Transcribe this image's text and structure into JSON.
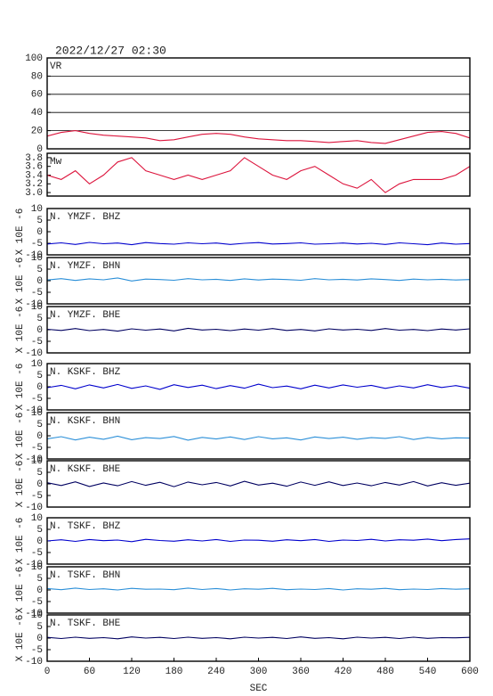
{
  "chart_data": [
    {
      "type": "line",
      "title": "2022/12/27 02:30",
      "label": "VR",
      "color": "#dc143c",
      "grid": true,
      "x": [
        0,
        20,
        40,
        60,
        80,
        100,
        120,
        140,
        160,
        180,
        200,
        220,
        240,
        260,
        280,
        300,
        320,
        340,
        360,
        380,
        400,
        420,
        440,
        460,
        480,
        500,
        520,
        540,
        560,
        580,
        600
      ],
      "values": [
        14,
        18,
        20,
        17,
        15,
        14,
        13,
        12,
        9,
        10,
        13,
        16,
        17,
        16,
        13,
        11,
        10,
        9,
        9,
        8,
        7,
        8,
        9,
        7,
        6,
        10,
        14,
        18,
        19,
        17,
        12
      ],
      "xlim": [
        0,
        600
      ],
      "ylim": [
        0,
        100
      ],
      "yticks": [
        0,
        20,
        40,
        60,
        80,
        100
      ]
    },
    {
      "type": "line",
      "label": "Mw",
      "color": "#dc143c",
      "x": [
        0,
        20,
        40,
        60,
        80,
        100,
        120,
        140,
        160,
        180,
        200,
        220,
        240,
        260,
        280,
        300,
        320,
        340,
        360,
        380,
        400,
        420,
        440,
        460,
        480,
        500,
        520,
        540,
        560,
        580,
        600
      ],
      "values": [
        3.4,
        3.3,
        3.5,
        3.2,
        3.4,
        3.7,
        3.8,
        3.5,
        3.4,
        3.3,
        3.4,
        3.3,
        3.4,
        3.5,
        3.8,
        3.6,
        3.4,
        3.3,
        3.5,
        3.6,
        3.4,
        3.2,
        3.1,
        3.3,
        3.0,
        3.2,
        3.3,
        3.3,
        3.3,
        3.4,
        3.6
      ],
      "xlim": [
        0,
        600
      ],
      "ylim": [
        2.92,
        3.9
      ],
      "yticks": [
        {
          "value": 3,
          "label": "3.0"
        },
        3.2,
        3.4,
        3.6,
        3.8
      ]
    },
    {
      "type": "line",
      "label": "N. YMZF. BHZ",
      "ylabel": "X 10E -6",
      "color": "#0000cd",
      "x": [
        0,
        20,
        40,
        60,
        80,
        100,
        120,
        140,
        160,
        180,
        200,
        220,
        240,
        260,
        280,
        300,
        320,
        340,
        360,
        380,
        400,
        420,
        440,
        460,
        480,
        500,
        520,
        540,
        560,
        580,
        600
      ],
      "values": [
        -5.3,
        -4.8,
        -5.5,
        -4.6,
        -5.2,
        -4.9,
        -5.6,
        -4.7,
        -5.1,
        -5.4,
        -4.8,
        -5.2,
        -4.9,
        -5.5,
        -5.0,
        -4.7,
        -5.3,
        -5.1,
        -4.8,
        -5.4,
        -5.2,
        -4.9,
        -5.3,
        -5.0,
        -5.5,
        -4.8,
        -5.2,
        -5.6,
        -4.9,
        -5.4,
        -5.1
      ],
      "xlim": [
        0,
        600
      ],
      "ylim": [
        -10,
        10
      ],
      "yticks": [
        -10,
        -5,
        0,
        5,
        10
      ]
    },
    {
      "type": "line",
      "label": "N. YMZF. BHN",
      "ylabel": "X 10E -6",
      "color": "#2b8fd8",
      "x": [
        0,
        20,
        40,
        60,
        80,
        100,
        120,
        140,
        160,
        180,
        200,
        220,
        240,
        260,
        280,
        300,
        320,
        340,
        360,
        380,
        400,
        420,
        440,
        460,
        480,
        500,
        520,
        540,
        560,
        580,
        600
      ],
      "values": [
        0.3,
        0.9,
        0.1,
        0.8,
        0.4,
        1.2,
        -0.1,
        0.7,
        0.5,
        0.2,
        0.9,
        0.4,
        0.6,
        0.1,
        0.8,
        0.3,
        0.7,
        0.5,
        0.2,
        0.9,
        0.4,
        0.6,
        0.3,
        0.8,
        0.5,
        0.1,
        0.7,
        0.4,
        0.6,
        0.3,
        0.5
      ],
      "xlim": [
        0,
        600
      ],
      "ylim": [
        -10,
        10
      ],
      "yticks": [
        -10,
        -5,
        0,
        5,
        10
      ]
    },
    {
      "type": "line",
      "label": "N. YMZF. BHE",
      "ylabel": "X 10E -6",
      "color": "#000060",
      "x": [
        0,
        20,
        40,
        60,
        80,
        100,
        120,
        140,
        160,
        180,
        200,
        220,
        240,
        260,
        280,
        300,
        320,
        340,
        360,
        380,
        400,
        420,
        440,
        460,
        480,
        500,
        520,
        540,
        560,
        580,
        600
      ],
      "values": [
        0.2,
        -0.3,
        0.5,
        -0.4,
        0.1,
        -0.6,
        0.4,
        -0.2,
        0.3,
        -0.5,
        0.6,
        -0.1,
        0.2,
        -0.4,
        0.3,
        -0.2,
        0.5,
        -0.3,
        0.1,
        -0.5,
        0.4,
        -0.1,
        0.2,
        -0.3,
        0.5,
        -0.2,
        0.1,
        -0.4,
        0.3,
        -0.1,
        0.4
      ],
      "xlim": [
        0,
        600
      ],
      "ylim": [
        -10,
        10
      ],
      "yticks": [
        -10,
        -5,
        0,
        5,
        10
      ]
    },
    {
      "type": "line",
      "label": "N. KSKF. BHZ",
      "ylabel": "X 10E -6",
      "color": "#0000cd",
      "x": [
        0,
        20,
        40,
        60,
        80,
        100,
        120,
        140,
        160,
        180,
        200,
        220,
        240,
        260,
        280,
        300,
        320,
        340,
        360,
        380,
        400,
        420,
        440,
        460,
        480,
        500,
        520,
        540,
        560,
        580,
        600
      ],
      "values": [
        -0.4,
        0.6,
        -0.9,
        0.8,
        -0.5,
        1.0,
        -0.7,
        0.4,
        -1.1,
        0.9,
        -0.3,
        0.7,
        -0.8,
        0.5,
        -0.6,
        1.1,
        -0.4,
        0.3,
        -0.9,
        0.7,
        -0.5,
        0.8,
        -0.2,
        0.6,
        -0.7,
        0.4,
        -0.5,
        0.9,
        -0.3,
        0.5,
        -0.6
      ],
      "xlim": [
        0,
        600
      ],
      "ylim": [
        -10,
        10
      ],
      "yticks": [
        -10,
        -5,
        0,
        5,
        10
      ]
    },
    {
      "type": "line",
      "label": "N. KSKF. BHN",
      "ylabel": "X 10E -6",
      "color": "#2b8fd8",
      "x": [
        0,
        20,
        40,
        60,
        80,
        100,
        120,
        140,
        160,
        180,
        200,
        220,
        240,
        260,
        280,
        300,
        320,
        340,
        360,
        380,
        400,
        420,
        440,
        460,
        480,
        500,
        520,
        540,
        560,
        580,
        600
      ],
      "values": [
        -1.3,
        -0.4,
        -1.8,
        -0.6,
        -1.5,
        -0.2,
        -1.7,
        -0.8,
        -1.2,
        -0.3,
        -1.9,
        -0.7,
        -1.4,
        -0.5,
        -1.6,
        -0.4,
        -1.3,
        -0.9,
        -1.8,
        -0.5,
        -1.2,
        -0.6,
        -1.5,
        -0.8,
        -1.1,
        -0.4,
        -1.6,
        -0.7,
        -1.3,
        -0.9,
        -1.0
      ],
      "xlim": [
        0,
        600
      ],
      "ylim": [
        -10,
        10
      ],
      "yticks": [
        -10,
        -5,
        0,
        5,
        10
      ]
    },
    {
      "type": "line",
      "label": "N. KSKF. BHE",
      "ylabel": "X 10E -6",
      "color": "#000060",
      "x": [
        0,
        20,
        40,
        60,
        80,
        100,
        120,
        140,
        160,
        180,
        200,
        220,
        240,
        260,
        280,
        300,
        320,
        340,
        360,
        380,
        400,
        420,
        440,
        460,
        480,
        500,
        520,
        540,
        560,
        580,
        600
      ],
      "values": [
        0.5,
        -0.7,
        0.9,
        -1.1,
        0.4,
        -0.8,
        1.0,
        -0.6,
        0.7,
        -1.2,
        0.8,
        -0.4,
        0.6,
        -0.9,
        1.1,
        -0.5,
        0.3,
        -1.0,
        0.8,
        -0.6,
        0.9,
        -0.7,
        0.4,
        -0.8,
        0.6,
        -0.5,
        1.0,
        -0.9,
        0.5,
        -0.6,
        0.3
      ],
      "xlim": [
        0,
        600
      ],
      "ylim": [
        -10,
        10
      ],
      "yticks": [
        -10,
        -5,
        0,
        5,
        10
      ]
    },
    {
      "type": "line",
      "label": "N. TSKF. BHZ",
      "ylabel": "X 10E -6",
      "color": "#0000cd",
      "x": [
        0,
        20,
        40,
        60,
        80,
        100,
        120,
        140,
        160,
        180,
        200,
        220,
        240,
        260,
        280,
        300,
        320,
        340,
        360,
        380,
        400,
        420,
        440,
        460,
        480,
        500,
        520,
        540,
        560,
        580,
        600
      ],
      "values": [
        0.0,
        0.5,
        -0.2,
        0.6,
        0.1,
        0.4,
        -0.3,
        0.7,
        0.2,
        -0.1,
        0.5,
        0.0,
        0.6,
        -0.2,
        0.4,
        0.3,
        -0.1,
        0.5,
        0.1,
        0.6,
        -0.2,
        0.4,
        0.2,
        0.7,
        0.0,
        0.5,
        0.3,
        0.8,
        0.1,
        0.6,
        0.9
      ],
      "xlim": [
        0,
        600
      ],
      "ylim": [
        -10,
        10
      ],
      "yticks": [
        -10,
        -5,
        0,
        5,
        10
      ]
    },
    {
      "type": "line",
      "label": "N. TSKF. BHN",
      "ylabel": "X 10E -6",
      "color": "#2b8fd8",
      "x": [
        0,
        20,
        40,
        60,
        80,
        100,
        120,
        140,
        160,
        180,
        200,
        220,
        240,
        260,
        280,
        300,
        320,
        340,
        360,
        380,
        400,
        420,
        440,
        460,
        480,
        500,
        520,
        540,
        560,
        580,
        600
      ],
      "values": [
        0.6,
        0.1,
        0.8,
        0.2,
        0.5,
        0.0,
        0.7,
        0.3,
        0.4,
        0.1,
        0.8,
        0.2,
        0.6,
        0.0,
        0.5,
        0.3,
        0.7,
        0.1,
        0.4,
        0.2,
        0.6,
        0.0,
        0.5,
        0.3,
        0.7,
        0.1,
        0.4,
        0.2,
        0.6,
        0.3,
        0.5
      ],
      "xlim": [
        0,
        600
      ],
      "ylim": [
        -10,
        10
      ],
      "yticks": [
        -10,
        -5,
        0,
        5,
        10
      ]
    },
    {
      "type": "line",
      "label": "N. TSKF. BHE",
      "ylabel": "X 10E -6",
      "color": "#000060",
      "xlabel": "SEC",
      "x": [
        0,
        20,
        40,
        60,
        80,
        100,
        120,
        140,
        160,
        180,
        200,
        220,
        240,
        260,
        280,
        300,
        320,
        340,
        360,
        380,
        400,
        420,
        440,
        460,
        480,
        500,
        520,
        540,
        560,
        580,
        600
      ],
      "values": [
        0.3,
        -0.2,
        0.4,
        -0.1,
        0.2,
        -0.3,
        0.5,
        0.0,
        0.3,
        -0.2,
        0.4,
        -0.1,
        0.2,
        -0.3,
        0.4,
        0.0,
        0.3,
        -0.2,
        0.5,
        -0.1,
        0.2,
        -0.3,
        0.4,
        0.0,
        0.3,
        -0.2,
        0.4,
        -0.1,
        0.2,
        0.1,
        0.3
      ],
      "xlim": [
        0,
        600
      ],
      "ylim": [
        -10,
        10
      ],
      "yticks": [
        -10,
        -5,
        0,
        5,
        10
      ],
      "xticks": [
        0,
        60,
        120,
        180,
        240,
        300,
        360,
        420,
        480,
        540,
        600
      ]
    }
  ]
}
